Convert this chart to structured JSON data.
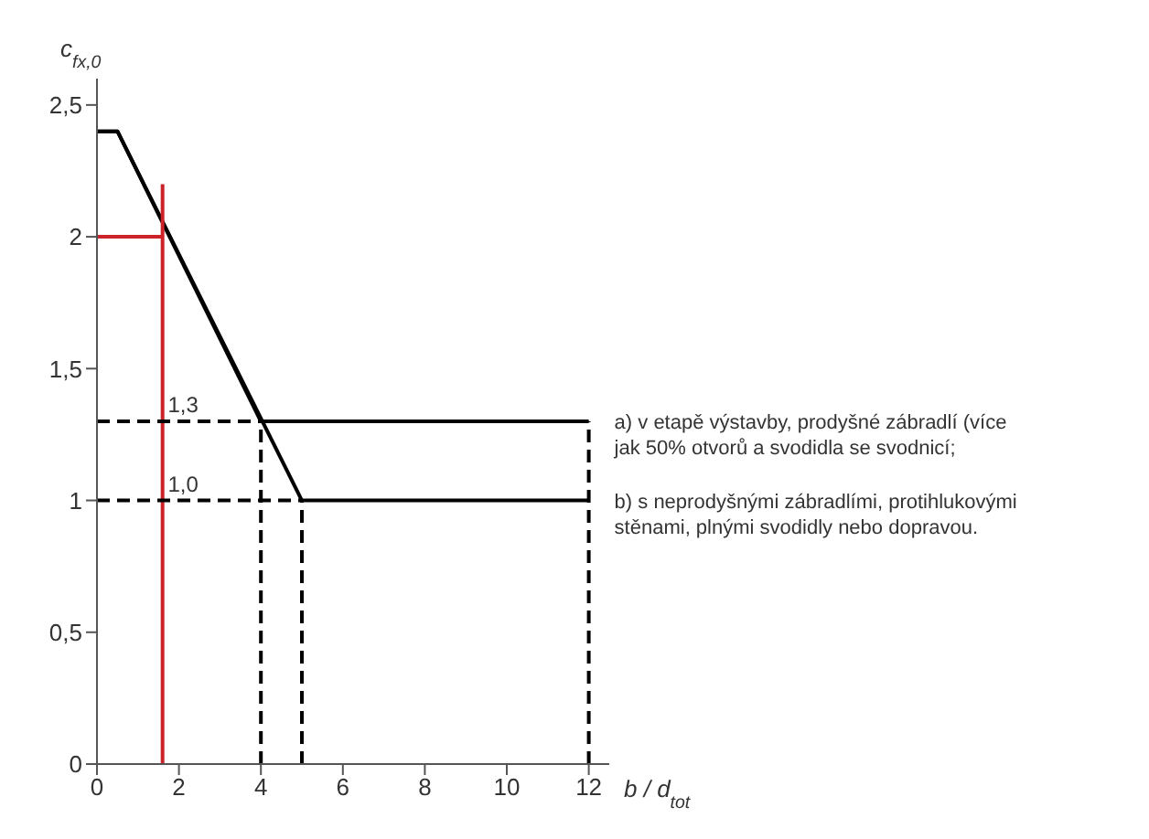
{
  "chart_data": {
    "type": "line",
    "xlabel": "b / d$_{tot}$",
    "ylabel": "c$_{fx,0}$",
    "xlim": [
      0,
      12.5
    ],
    "xticks": [
      0,
      2,
      4,
      6,
      8,
      10,
      12
    ],
    "ylim": [
      0,
      2.6
    ],
    "yticks": [
      0,
      {
        "value": 0.5,
        "label": "0,5"
      },
      1,
      {
        "value": 1.5,
        "label": "1,5"
      },
      2,
      {
        "value": 2.5,
        "label": "2,5"
      }
    ],
    "grid": false,
    "legend": false,
    "marker": "none",
    "series": [
      {
        "name": "a) v etapě výstavby, prodyšné zábradlí (více jak 50% otvorů a svodidla se svodnicí;",
        "color": "#000000",
        "x": [
          0,
          0.5,
          4,
          12
        ],
        "values": [
          2.4,
          2.4,
          1.3,
          1.3
        ]
      },
      {
        "name": "b) s neprodyšnými zábradlími, protihlukovými stěnami, plnými svodidly nebo dopravou.",
        "color": "#000000",
        "x": [
          0,
          0.5,
          5,
          12
        ],
        "values": [
          2.4,
          2.4,
          1.0,
          1.0
        ]
      },
      {
        "color": "#cc2229",
        "x": [
          0,
          1.6
        ],
        "values": [
          2,
          2
        ]
      },
      {
        "color": "#cc2229",
        "x": [
          1.6,
          1.6
        ],
        "values": [
          0,
          2.2
        ]
      },
      {
        "color": "#000000",
        "line_style": "dashed",
        "x": [
          0,
          4
        ],
        "values": [
          1.3,
          1.3
        ]
      },
      {
        "color": "#000000",
        "line_style": "dashed",
        "x": [
          0,
          5
        ],
        "values": [
          1.0,
          1.0
        ]
      },
      {
        "color": "#000000",
        "line_style": "dashed",
        "x": [
          4,
          4
        ],
        "values": [
          0,
          1.3
        ]
      },
      {
        "color": "#000000",
        "line_style": "dashed",
        "x": [
          5,
          5
        ],
        "values": [
          0,
          1.0
        ]
      },
      {
        "color": "#000000",
        "line_style": "dashed",
        "x": [
          12,
          12
        ],
        "values": [
          0,
          1.3
        ]
      }
    ],
    "annotations": [
      {
        "text": "1,3",
        "x": 2.1,
        "y": 1.3
      },
      {
        "text": "1,0",
        "x": 2.1,
        "y": 1.0
      }
    ]
  }
}
